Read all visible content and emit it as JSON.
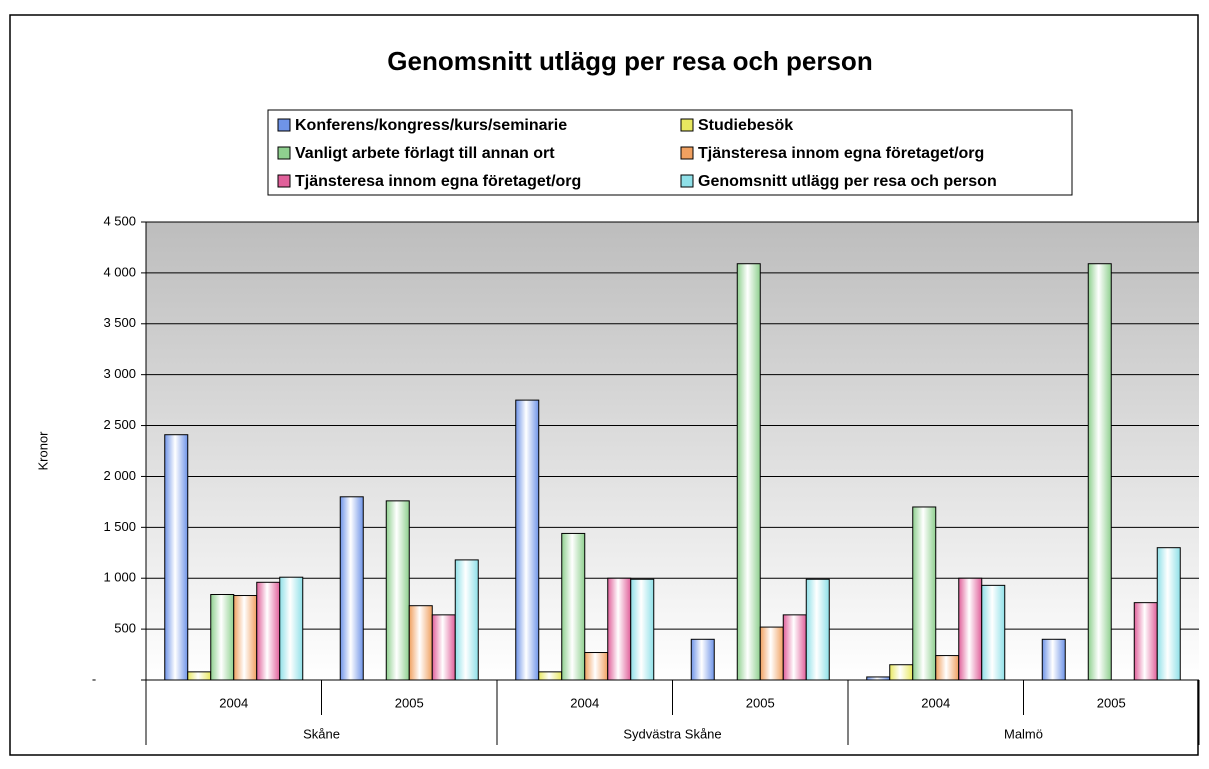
{
  "chart_data": {
    "type": "bar",
    "title": "Genomsnitt utlägg per resa och person",
    "y_label": "Kronor",
    "categories": [
      "2004",
      "2005",
      "2004",
      "2005",
      "2004",
      "2005"
    ],
    "groups": [
      "Skåne",
      "Sydvästra Skåne",
      "Malmö"
    ],
    "series": [
      {
        "name": "Konferens/kongress/kurs/seminarie",
        "color": "#6f94e8",
        "values": [
          2410,
          1800,
          2750,
          400,
          30,
          400
        ]
      },
      {
        "name": "Studiebesök",
        "color": "#e8e860",
        "values": [
          80,
          null,
          80,
          null,
          150,
          null
        ]
      },
      {
        "name": "Vanligt arbete förlagt till annan ort",
        "color": "#8fd08f",
        "values": [
          840,
          1760,
          1440,
          4090,
          1700,
          4090
        ]
      },
      {
        "name": "Tjänsteresa innom egna företaget/org",
        "color": "#f0a060",
        "values": [
          830,
          730,
          270,
          520,
          240,
          null
        ]
      },
      {
        "name": "Tjänsteresa innom egna företaget/org",
        "color": "#e0609a",
        "values": [
          960,
          640,
          1000,
          640,
          1000,
          760
        ]
      },
      {
        "name": "Genomsnitt utlägg per resa och person",
        "color": "#8fe0e8",
        "values": [
          1010,
          1180,
          990,
          990,
          930,
          1300
        ]
      }
    ],
    "ylim": [
      0,
      4500
    ],
    "yticks": [
      {
        "value": 0,
        "label": "-"
      },
      500,
      {
        "value": 1000,
        "label": "1 000"
      },
      {
        "value": 1500,
        "label": "1 500"
      },
      {
        "value": 2000,
        "label": "2 000"
      },
      {
        "value": 2500,
        "label": "2 500"
      },
      {
        "value": 3000,
        "label": "3 000"
      },
      {
        "value": 3500,
        "label": "3 500"
      },
      {
        "value": 4000,
        "label": "4 000"
      },
      {
        "value": 4500,
        "label": "4 500"
      }
    ],
    "grid": true
  }
}
